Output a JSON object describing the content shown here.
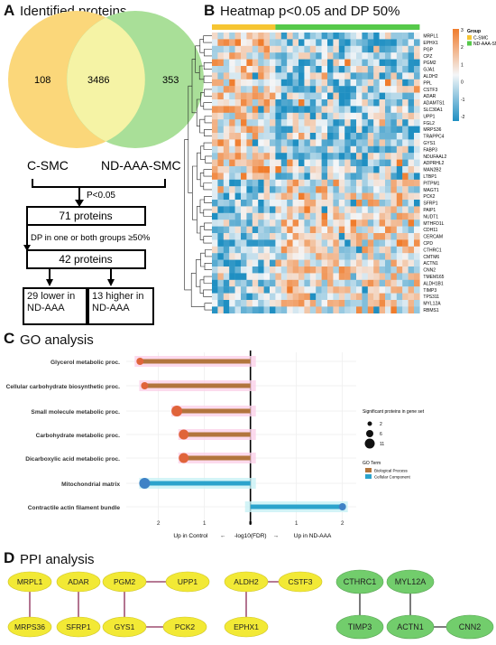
{
  "panelA": {
    "letter": "A",
    "title": "Identified proteins",
    "venn": {
      "left_only": "108",
      "both": "3486",
      "right_only": "353",
      "left_label": "C-SMC",
      "right_label": "ND-AAA-SMC",
      "left_color": "#fbd77a",
      "right_color": "#a9df98",
      "overlap_color": "#f5f3a5"
    },
    "flow": {
      "filter1": "P<0.05",
      "box1": "71 proteins",
      "filter2": "DP in one or both groups ≥50%",
      "box2": "42 proteins",
      "lower_l1": "29 lower in",
      "lower_l2": "ND-AAA",
      "higher_l1": "13 higher in",
      "higher_l2": "ND-AAA"
    }
  },
  "panelB": {
    "letter": "B",
    "title": "Heatmap p<0.05 and DP 50%",
    "genes": [
      "MRPL1",
      "EPHX1",
      "PGP",
      "CPZ",
      "PGM2",
      "GJA1",
      "ALDH2",
      "PPL",
      "CSTF3",
      "ADAR",
      "ADAMTS1",
      "SLC30A1",
      "UPP1",
      "FGL2",
      "MRPS36",
      "TRAPPC4",
      "GYS1",
      "FABP3",
      "NDUFAAL2",
      "ADPRHL2",
      "MAN2B2",
      "LTBP1",
      "PITPM1",
      "MAGT1",
      "PCK2",
      "SFRP1",
      "PAIP1",
      "NUDT1",
      "MTHFD1L",
      "CDH11",
      "CERCAM",
      "CPD",
      "CTHRC1",
      "CMTM6",
      "ACTN1",
      "CNN2",
      "TMEM165",
      "ALDH1B1",
      "TIMP3",
      "TPS311",
      "MYL12A",
      "RBMS1"
    ],
    "legend": {
      "title": "Group",
      "items": [
        {
          "label": "C-SMC",
          "color": "#f6c532"
        },
        {
          "label": "ND-AAA-SMC",
          "color": "#56c94a"
        }
      ],
      "scale": [
        "3",
        "2",
        "1",
        "0",
        "-1",
        "-2"
      ]
    },
    "colors": {
      "high": "#f07c2c",
      "mid": "#f4f6f8",
      "low": "#1f8fc2"
    },
    "groups": {
      "control_cols": 11,
      "nd_cols": 25
    }
  },
  "panelC": {
    "letter": "C",
    "title": "GO analysis",
    "chart_data": {
      "type": "lollipop",
      "categories": [
        "Glycerol metabolic proc.",
        "Cellular carbohydrate biosynthetic proc.",
        "Small molecule metabolic proc.",
        "Carbohydrate metabolic proc.",
        "Dicarboxylic acid metabolic proc.",
        "Mitochondrial matrix",
        "Contractile actin filament bundle"
      ],
      "values": [
        -2.4,
        -2.3,
        -1.6,
        -1.45,
        -1.45,
        -2.3,
        2.0
      ],
      "go_term": [
        "Biological Process",
        "Biological Process",
        "Biological Process",
        "Biological Process",
        "Biological Process",
        "Cellular Component",
        "Cellular Component"
      ],
      "sizes": [
        2,
        2,
        11,
        6,
        6,
        11,
        2
      ],
      "xticks": [
        "2",
        "1",
        "0",
        "1",
        "2"
      ],
      "xlim": [
        -2.7,
        2.3
      ],
      "xlabel_left": "Up in Control",
      "xlabel_mid": "-log10(FDR)",
      "xlabel_right": "Up in ND-AAA",
      "arrow_left": "←",
      "arrow_right": "→",
      "legend": {
        "size_title": "Significant proteins in gene set",
        "size_labels": [
          "2",
          "6",
          "11"
        ],
        "color_title": "GO Term",
        "color_labels": [
          "Biological Process",
          "Cellular Component"
        ]
      },
      "colors": {
        "bp_line": "#b2753d",
        "bp_dot": "#e0643a",
        "cc_line": "#2ba3cc",
        "cc_dot": "#3f82c6",
        "bp_band": "#fbd1e8",
        "cc_band": "#c8f1f5"
      }
    }
  },
  "panelD": {
    "letter": "D",
    "title": "PPI analysis",
    "yellow_nodes": [
      "MRPL1",
      "MRPS36",
      "ADAR",
      "SFRP1",
      "PGM2",
      "GYS1",
      "UPP1",
      "PCK2",
      "ALDH2",
      "CSTF3",
      "EPHX1"
    ],
    "green_nodes": [
      "CTHRC1",
      "TIMP3",
      "MYL12A",
      "ACTN1",
      "CNN2"
    ],
    "yellow": "#f2e935",
    "green": "#72cd6c",
    "edge": "#8a2a55"
  }
}
